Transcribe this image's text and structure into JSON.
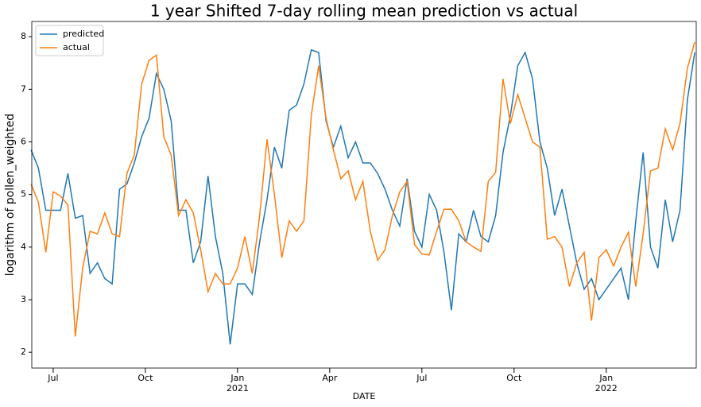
{
  "chart_data": {
    "type": "line",
    "title": "1 year Shifted 7-day rolling mean prediction vs actual",
    "xlabel": "DATE",
    "ylabel": "logarithm of pollen_weighted",
    "x": [
      2020.44,
      2020.46,
      2020.48,
      2020.5,
      2020.52,
      2020.54,
      2020.56,
      2020.58,
      2020.6,
      2020.62,
      2020.64,
      2020.66,
      2020.68,
      2020.7,
      2020.72,
      2020.74,
      2020.76,
      2020.78,
      2020.8,
      2020.82,
      2020.84,
      2020.86,
      2020.88,
      2020.9,
      2020.92,
      2020.94,
      2020.96,
      2020.98,
      2021.0,
      2021.02,
      2021.04,
      2021.06,
      2021.08,
      2021.1,
      2021.12,
      2021.14,
      2021.16,
      2021.18,
      2021.2,
      2021.22,
      2021.24,
      2021.26,
      2021.28,
      2021.3,
      2021.32,
      2021.34,
      2021.36,
      2021.38,
      2021.4,
      2021.42,
      2021.44,
      2021.46,
      2021.48,
      2021.5,
      2021.52,
      2021.54,
      2021.56,
      2021.58,
      2021.6,
      2021.62,
      2021.64,
      2021.66,
      2021.68,
      2021.7,
      2021.72,
      2021.74,
      2021.76,
      2021.78,
      2021.8,
      2021.82,
      2021.84,
      2021.86,
      2021.88,
      2021.9,
      2021.92,
      2021.94,
      2021.96,
      2021.98,
      2022.0,
      2022.02,
      2022.04,
      2022.06,
      2022.08,
      2022.1,
      2022.12,
      2022.14,
      2022.16,
      2022.18,
      2022.2,
      2022.22,
      2022.24
    ],
    "series": [
      {
        "name": "predicted",
        "color": "#1f77b4",
        "values": [
          5.85,
          5.5,
          4.7,
          4.7,
          4.7,
          5.4,
          4.55,
          4.6,
          3.5,
          3.7,
          3.4,
          3.3,
          5.1,
          5.2,
          5.6,
          6.1,
          6.45,
          7.3,
          7.0,
          6.4,
          4.7,
          4.7,
          3.7,
          4.1,
          5.35,
          4.2,
          3.5,
          2.15,
          3.3,
          3.3,
          3.1,
          4.1,
          4.9,
          5.9,
          5.5,
          6.6,
          6.7,
          7.1,
          7.75,
          7.7,
          6.4,
          5.9,
          6.3,
          5.7,
          6.0,
          5.6,
          5.6,
          5.4,
          5.1,
          4.7,
          4.4,
          5.3,
          4.3,
          4.0,
          5.0,
          4.7,
          3.9,
          2.8,
          4.25,
          4.1,
          4.7,
          4.2,
          4.1,
          4.6,
          5.8,
          6.5,
          7.45,
          7.7,
          7.2,
          6.0,
          5.5,
          4.6,
          5.1,
          4.4,
          3.7,
          3.2,
          3.4,
          3.0,
          3.2,
          3.4,
          3.6,
          3.0,
          4.5,
          5.8,
          4.0,
          3.6,
          4.9,
          4.1,
          4.7,
          6.8,
          7.7
        ]
      },
      {
        "name": "actual",
        "color": "#ff7f0e",
        "values": [
          5.2,
          4.85,
          3.9,
          5.05,
          4.97,
          4.8,
          2.3,
          3.6,
          4.3,
          4.25,
          4.65,
          4.25,
          4.2,
          5.4,
          5.75,
          7.1,
          7.55,
          7.65,
          6.1,
          5.75,
          4.6,
          4.9,
          4.65,
          3.95,
          3.15,
          3.5,
          3.3,
          3.3,
          3.6,
          4.2,
          3.5,
          4.6,
          6.05,
          5.0,
          3.8,
          4.5,
          4.3,
          4.5,
          6.5,
          7.45,
          6.45,
          5.85,
          5.3,
          5.45,
          4.9,
          5.25,
          4.3,
          3.75,
          3.95,
          4.6,
          5.05,
          5.25,
          4.05,
          3.87,
          3.85,
          4.3,
          4.72,
          4.72,
          4.5,
          4.1,
          4.0,
          3.92,
          5.25,
          5.42,
          7.2,
          6.35,
          6.9,
          6.45,
          6.0,
          5.9,
          4.15,
          4.2,
          4.0,
          3.25,
          3.7,
          3.9,
          2.6,
          3.8,
          3.95,
          3.64,
          4.0,
          4.28,
          3.25,
          4.25,
          5.45,
          5.5,
          6.25,
          5.85,
          6.35,
          7.4,
          7.9
        ]
      }
    ],
    "xlim": [
      2020.442,
      2022.244
    ],
    "xticks": [
      {
        "value": 2020.5,
        "label": "Jul"
      },
      {
        "value": 2020.75,
        "label": "Oct"
      },
      {
        "value": 2021.0,
        "label": "Jan\n2021"
      },
      {
        "value": 2021.25,
        "label": "Apr"
      },
      {
        "value": 2021.5,
        "label": "Jul"
      },
      {
        "value": 2021.75,
        "label": "Oct"
      },
      {
        "value": 2022.0,
        "label": "Jan\n2022"
      }
    ],
    "ylim": [
      1.7,
      8.29
    ],
    "yticks": [
      2,
      3,
      4,
      5,
      6,
      7,
      8
    ],
    "legend": "upper-left"
  }
}
